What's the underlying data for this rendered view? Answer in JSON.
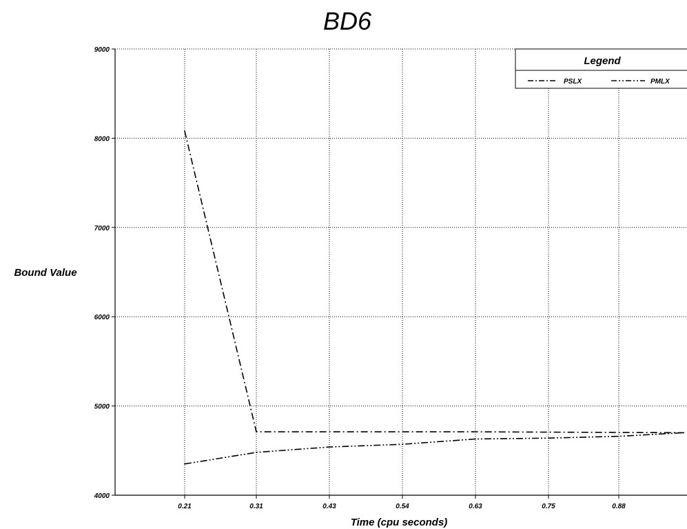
{
  "chart_data": {
    "type": "line",
    "title": "BD6",
    "xlabel": "Time (cpu seconds)",
    "ylabel": "Bound Value",
    "x_ticks": [
      "0.21",
      "0.31",
      "0.43",
      "0.54",
      "0.63",
      "0.75",
      "0.88"
    ],
    "y_ticks": [
      "4000",
      "5000",
      "6000",
      "7000",
      "8000",
      "9000"
    ],
    "ylim": [
      4000,
      9000
    ],
    "grid": true,
    "legend": {
      "title": "Legend",
      "position": "top-right",
      "entries": [
        "PSLX",
        "PMLX"
      ]
    },
    "series": [
      {
        "name": "PSLX",
        "line_style": "dash-dot",
        "color": "#000000",
        "points": [
          {
            "x": 0.21,
            "y": 8080
          },
          {
            "x": 0.31,
            "y": 4710
          },
          {
            "x": 0.63,
            "y": 4710
          },
          {
            "x": 1.0,
            "y": 4700
          }
        ]
      },
      {
        "name": "PMLX",
        "line_style": "dash-dot-dot",
        "color": "#000000",
        "points": [
          {
            "x": 0.21,
            "y": 4350
          },
          {
            "x": 0.31,
            "y": 4480
          },
          {
            "x": 0.43,
            "y": 4540
          },
          {
            "x": 0.54,
            "y": 4570
          },
          {
            "x": 0.63,
            "y": 4630
          },
          {
            "x": 0.75,
            "y": 4640
          },
          {
            "x": 0.88,
            "y": 4660
          },
          {
            "x": 1.0,
            "y": 4700
          }
        ]
      }
    ]
  }
}
